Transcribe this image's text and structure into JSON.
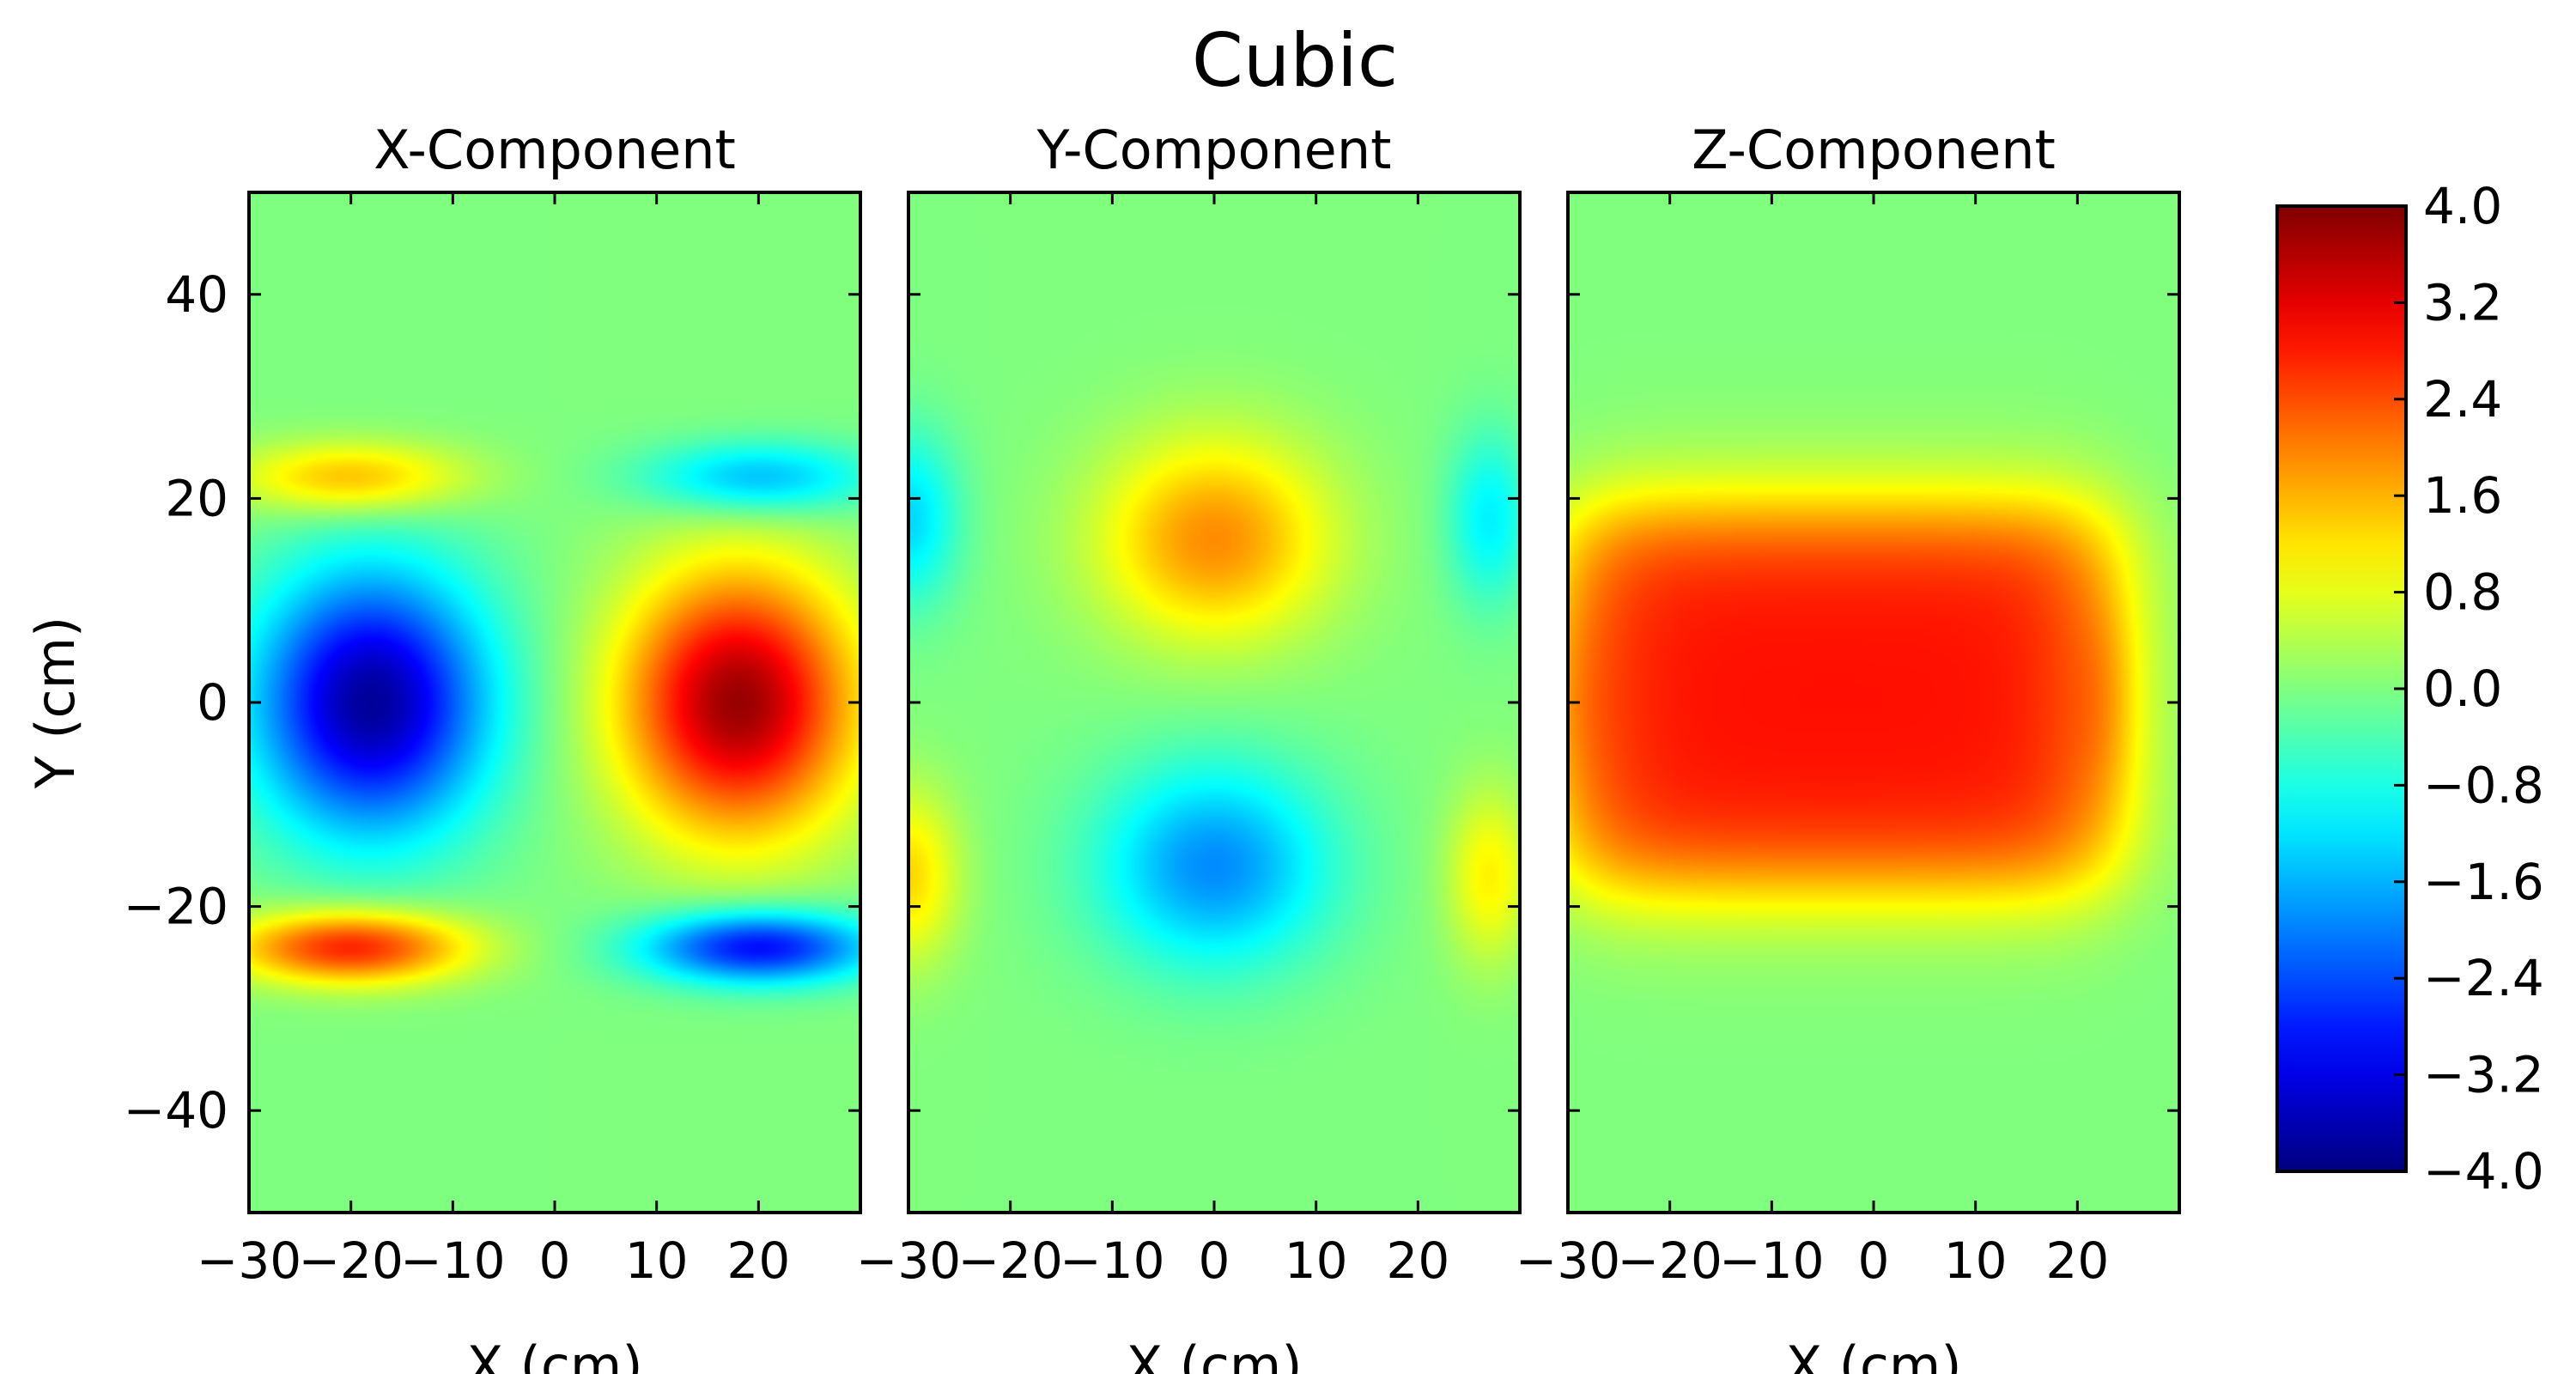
{
  "chart_data": {
    "type": "heatmap",
    "title": "Cubic",
    "colormap": "jet",
    "clim": [
      -4.0,
      4.0
    ],
    "colorbar": {
      "ticks": [
        4.0,
        3.2,
        2.4,
        1.6,
        0.8,
        0.0,
        -0.8,
        -1.6,
        -2.4,
        -3.2,
        -4.0
      ],
      "tick_labels": [
        "4.0",
        "3.2",
        "2.4",
        "1.6",
        "0.8",
        "0.0",
        "−0.8",
        "−1.6",
        "−2.4",
        "−3.2",
        "−4.0"
      ]
    },
    "xlim": [
      -30,
      30
    ],
    "ylim": [
      -50,
      50
    ],
    "x_ticks": [
      -30,
      -20,
      -10,
      0,
      10,
      20
    ],
    "x_tick_labels": [
      "−30",
      "−20",
      "−10",
      "0",
      "10",
      "20"
    ],
    "y_ticks": [
      40,
      20,
      0,
      -20,
      -40
    ],
    "y_tick_labels": [
      "40",
      "20",
      "0",
      "−20",
      "−40"
    ],
    "ylabel": "Y (cm)",
    "panels": [
      {
        "title": "X-Component",
        "xlabel": "X (cm)",
        "features": [
          {
            "x": -18,
            "y": 0,
            "value": -3.8,
            "sx": 8,
            "sy": 9
          },
          {
            "x": 18,
            "y": 0,
            "value": 3.8,
            "sx": 8,
            "sy": 9
          },
          {
            "x": -20,
            "y": 22,
            "value": 1.6,
            "sx": 8,
            "sy": 2.5
          },
          {
            "x": 20,
            "y": 22,
            "value": -1.6,
            "sx": 8,
            "sy": 2.5
          },
          {
            "x": -20,
            "y": -24,
            "value": 2.8,
            "sx": 8,
            "sy": 2.5
          },
          {
            "x": 20,
            "y": -24,
            "value": -3.0,
            "sx": 8,
            "sy": 2.5
          }
        ]
      },
      {
        "title": "Y-Component",
        "xlabel": "X (cm)",
        "features": [
          {
            "x": 0,
            "y": 16,
            "value": 1.9,
            "sx": 8,
            "sy": 7
          },
          {
            "x": 0,
            "y": -16,
            "value": -1.9,
            "sx": 8,
            "sy": 7
          },
          {
            "x": -30,
            "y": 18,
            "value": -1.3,
            "sx": 3.5,
            "sy": 6
          },
          {
            "x": 27,
            "y": 18,
            "value": -1.1,
            "sx": 3,
            "sy": 6
          },
          {
            "x": -30,
            "y": -17,
            "value": 1.3,
            "sx": 3.5,
            "sy": 6
          },
          {
            "x": 27,
            "y": -17,
            "value": 1.1,
            "sx": 3,
            "sy": 6
          }
        ]
      },
      {
        "title": "Z-Component",
        "xlabel": "X (cm)",
        "band": {
          "x_from": -30,
          "x_to": 23,
          "y_from": -18,
          "y_to": 19,
          "value": 2.9,
          "edge_x": 3,
          "edge_y": 3
        },
        "features": [
          {
            "x": -30,
            "y": 0,
            "value": 0.35,
            "sx": 3,
            "sy": 8
          },
          {
            "x": 23,
            "y": 0,
            "value": 0.45,
            "sx": 2.5,
            "sy": 8
          }
        ]
      }
    ]
  }
}
